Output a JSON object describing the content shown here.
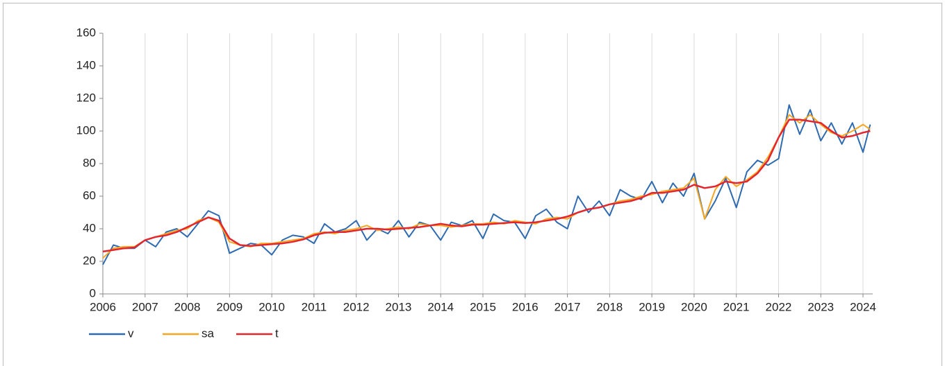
{
  "chart_data": {
    "type": "line",
    "x": [
      2006,
      2006.25,
      2006.5,
      2006.75,
      2007,
      2007.25,
      2007.5,
      2007.75,
      2008,
      2008.25,
      2008.5,
      2008.75,
      2009,
      2009.25,
      2009.5,
      2009.75,
      2010,
      2010.25,
      2010.5,
      2010.75,
      2011,
      2011.25,
      2011.5,
      2011.75,
      2012,
      2012.25,
      2012.5,
      2012.75,
      2013,
      2013.25,
      2013.5,
      2013.75,
      2014,
      2014.25,
      2014.5,
      2014.75,
      2015,
      2015.25,
      2015.5,
      2015.75,
      2016,
      2016.25,
      2016.5,
      2016.75,
      2017,
      2017.25,
      2017.5,
      2017.75,
      2018,
      2018.25,
      2018.5,
      2018.75,
      2019,
      2019.25,
      2019.5,
      2019.75,
      2020,
      2020.25,
      2020.5,
      2020.75,
      2021,
      2021.25,
      2021.5,
      2021.75,
      2022,
      2022.25,
      2022.5,
      2022.75,
      2023,
      2023.25,
      2023.5,
      2023.75,
      2024,
      2024.17
    ],
    "series": [
      {
        "name": "v",
        "color": "#2e6ab0",
        "values": [
          18,
          30,
          28,
          28,
          33,
          29,
          38,
          40,
          35,
          43,
          51,
          48,
          25,
          28,
          31,
          30,
          24,
          33,
          36,
          35,
          31,
          43,
          38,
          40,
          45,
          33,
          40,
          37,
          45,
          35,
          44,
          42,
          33,
          44,
          42,
          45,
          34,
          49,
          45,
          44,
          34,
          48,
          52,
          44,
          40,
          60,
          50,
          57,
          48,
          64,
          60,
          58,
          69,
          56,
          68,
          60,
          74,
          46,
          57,
          71,
          53,
          75,
          82,
          79,
          83,
          116,
          98,
          113,
          94,
          105,
          92,
          105,
          87,
          104
        ]
      },
      {
        "name": "sa",
        "color": "#f5a623",
        "values": [
          22,
          28,
          29,
          29,
          33,
          35,
          37,
          39,
          40,
          45,
          47,
          44,
          32,
          30,
          29,
          31,
          31,
          32,
          33,
          34,
          37,
          38,
          37,
          39,
          40,
          42,
          39,
          40,
          41,
          40,
          43,
          42,
          42,
          41,
          42,
          43,
          43,
          44,
          43,
          45,
          44,
          43,
          46,
          47,
          46,
          50,
          52,
          53,
          55,
          57,
          58,
          60,
          61,
          63,
          64,
          65,
          71,
          46,
          64,
          72,
          66,
          70,
          75,
          84,
          96,
          110,
          105,
          110,
          104,
          99,
          97,
          100,
          104,
          101
        ]
      },
      {
        "name": "t",
        "color": "#e3262d",
        "values": [
          26,
          27,
          28,
          28.5,
          33,
          35,
          36,
          38,
          41,
          44,
          47,
          45,
          34,
          30,
          29.5,
          30,
          30.5,
          31,
          32,
          33.5,
          36,
          37.5,
          38,
          38,
          39,
          40,
          40,
          39.5,
          40,
          40.5,
          41,
          42,
          43,
          42,
          41.5,
          42.5,
          42.5,
          43,
          43.5,
          44,
          43.5,
          44,
          45,
          46,
          47.5,
          50,
          52,
          53,
          55,
          56,
          57,
          59,
          62,
          62,
          63,
          64,
          67,
          65,
          66,
          69,
          68,
          69,
          74,
          82,
          96,
          107,
          107,
          106,
          105,
          100,
          96,
          97,
          99,
          100
        ]
      }
    ],
    "xlim": [
      2006,
      2024.23
    ],
    "xticks": [
      2006,
      2007,
      2008,
      2009,
      2010,
      2011,
      2012,
      2013,
      2014,
      2015,
      2016,
      2017,
      2018,
      2019,
      2020,
      2021,
      2022,
      2023,
      2024
    ],
    "ylim": [
      0,
      160
    ],
    "yticks": [
      0,
      20,
      40,
      60,
      80,
      100,
      120,
      140,
      160
    ],
    "grid": true
  }
}
